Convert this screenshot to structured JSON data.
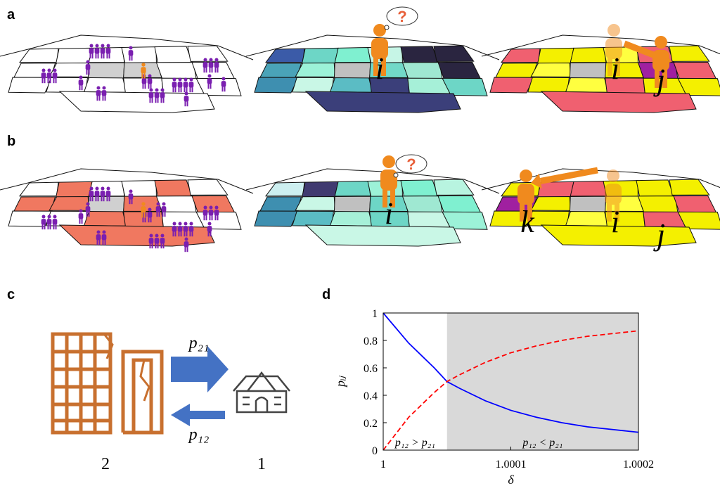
{
  "panel_labels": [
    "a",
    "b",
    "c",
    "d"
  ],
  "panel_a": {
    "thought": "?",
    "person_labels": [
      "i",
      "i",
      "j"
    ]
  },
  "panel_b": {
    "thought": "?",
    "person_labels": [
      "i",
      "k",
      "i",
      "j"
    ]
  },
  "panel_c": {
    "arrow_top": "p₂₁",
    "arrow_bottom": "p₁₂",
    "left_label": "2",
    "right_label": "1"
  },
  "chart_data": {
    "type": "line",
    "xlabel": "δ",
    "ylabel": "pᵢⱼ",
    "x": [
      1,
      1.00002,
      1.00004,
      1.00005,
      1.00006,
      1.00008,
      1.0001,
      1.00012,
      1.00014,
      1.00016,
      1.00018,
      1.0002
    ],
    "series": [
      {
        "color": "#0000ff",
        "linestyle": "solid",
        "values": [
          1,
          0.78,
          0.6,
          0.5,
          0.45,
          0.36,
          0.29,
          0.24,
          0.2,
          0.17,
          0.15,
          0.13
        ]
      },
      {
        "color": "#ff0000",
        "linestyle": "dashed",
        "values": [
          0,
          0.24,
          0.42,
          0.5,
          0.55,
          0.64,
          0.71,
          0.76,
          0.8,
          0.83,
          0.85,
          0.87
        ]
      }
    ],
    "shade_x": [
      1.00005,
      1.0002
    ],
    "shade_color": "#d9d9d9",
    "annotations": [
      "p₁₂ > p₂₁",
      "p₁₂ < p₂₁"
    ],
    "xlim": [
      1,
      1.0002
    ],
    "xticks": [
      1,
      1.0001,
      1.0002
    ],
    "ylim": [
      0,
      1
    ],
    "yticks": [
      0,
      0.2,
      0.4,
      0.6,
      0.8,
      1
    ]
  }
}
